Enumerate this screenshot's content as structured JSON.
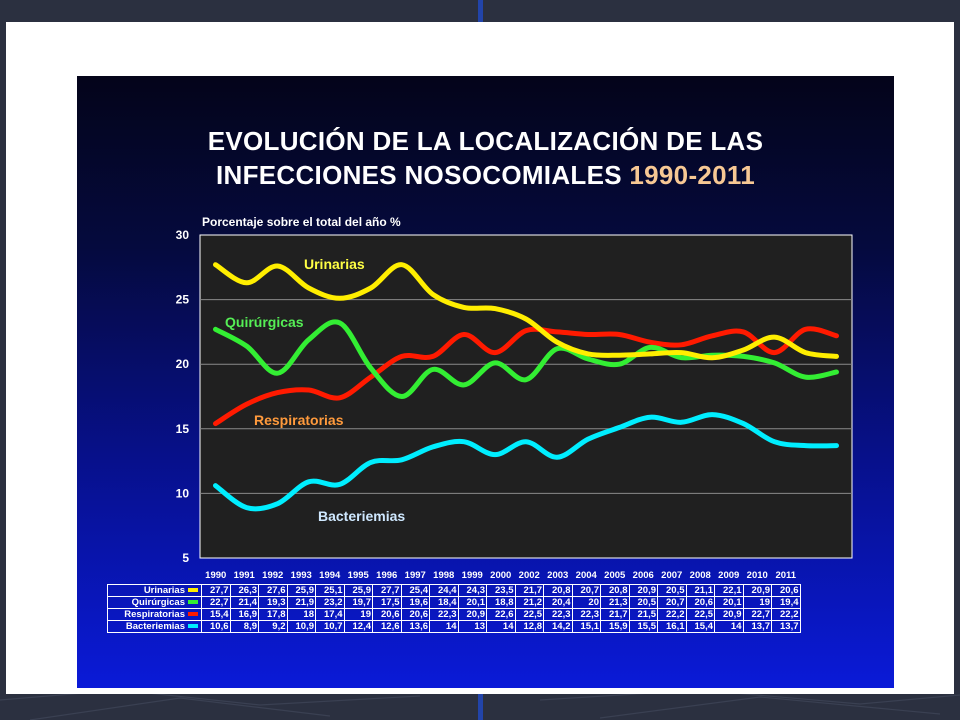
{
  "slide": {
    "title_line1": "EVOLUCIÓN DE LA LOCALIZACIÓN DE LAS",
    "title_line2": "INFECCIONES NOSOCOMIALES",
    "title_years": "1990-2011"
  },
  "chart_data": {
    "type": "line",
    "ylabel": "Porcentaje sobre el total del año %",
    "ylim": [
      5,
      30
    ],
    "yticks": [
      5,
      10,
      15,
      20,
      25,
      30
    ],
    "grid": true,
    "categories": [
      "1990",
      "1991",
      "1992",
      "1993",
      "1994",
      "1995",
      "1996",
      "1997",
      "1998",
      "1999",
      "2000",
      "2002",
      "2003",
      "2004",
      "2005",
      "2006",
      "2007",
      "2008",
      "2009",
      "2010",
      "2011"
    ],
    "series": [
      {
        "name": "Urinarias",
        "label_color": "#ffff44",
        "color": "#ffee00",
        "values": [
          27.7,
          26.3,
          27.6,
          25.9,
          25.1,
          25.9,
          27.7,
          25.4,
          24.4,
          24.3,
          23.5,
          21.7,
          20.8,
          20.7,
          20.8,
          20.9,
          20.5,
          21.1,
          22.1,
          20.9,
          20.6
        ],
        "table_values": [
          "27,7",
          "26,3",
          "27,6",
          "25,9",
          "25,1",
          "25,9",
          "27,7",
          "25,4",
          "24,4",
          "24,3",
          "23,5",
          "21,7",
          "20,8",
          "20,7",
          "20,8",
          "20,9",
          "20,5",
          "21,1",
          "22,1",
          "20,9",
          "20,6"
        ]
      },
      {
        "name": "Quirúrgicas",
        "label_color": "#55ee55",
        "color": "#33ee33",
        "values": [
          22.7,
          21.4,
          19.3,
          21.9,
          23.2,
          19.7,
          17.5,
          19.6,
          18.4,
          20.1,
          18.8,
          21.2,
          20.4,
          20,
          21.3,
          20.5,
          20.7,
          20.6,
          20.1,
          19,
          19.4
        ],
        "table_values": [
          "22,7",
          "21,4",
          "19,3",
          "21,9",
          "23,2",
          "19,7",
          "17,5",
          "19,6",
          "18,4",
          "20,1",
          "18,8",
          "21,2",
          "20,4",
          "20",
          "21,3",
          "20,5",
          "20,7",
          "20,6",
          "20,1",
          "19",
          "19,4"
        ]
      },
      {
        "name": "Respiratorias",
        "label_color": "#ff9a3c",
        "color": "#ff1a00",
        "values": [
          15.4,
          16.9,
          17.8,
          18,
          17.4,
          19,
          20.6,
          20.6,
          22.3,
          20.9,
          22.6,
          22.5,
          22.3,
          22.3,
          21.7,
          21.5,
          22.2,
          22.5,
          20.9,
          22.7,
          22.2
        ],
        "table_values": [
          "15,4",
          "16,9",
          "17,8",
          "18",
          "17,4",
          "19",
          "20,6",
          "20,6",
          "22,3",
          "20,9",
          "22,6",
          "22,5",
          "22,3",
          "22,3",
          "21,7",
          "21,5",
          "22,2",
          "22,5",
          "20,9",
          "22,7",
          "22,2"
        ]
      },
      {
        "name": "Bacteriemias",
        "label_color": "#cfe8ff",
        "color": "#00eeff",
        "values": [
          10.6,
          8.9,
          9.2,
          10.9,
          10.7,
          12.4,
          12.6,
          13.6,
          14,
          13,
          14,
          12.8,
          14.2,
          15.1,
          15.9,
          15.5,
          16.1,
          15.4,
          14,
          13.7,
          13.7
        ],
        "table_values": [
          "10,6",
          "8,9",
          "9,2",
          "10,9",
          "10,7",
          "12,4",
          "12,6",
          "13,6",
          "14",
          "13",
          "14",
          "12,8",
          "14,2",
          "15,1",
          "15,9",
          "15,5",
          "16,1",
          "15,4",
          "14",
          "13,7",
          "13,7"
        ]
      }
    ]
  }
}
